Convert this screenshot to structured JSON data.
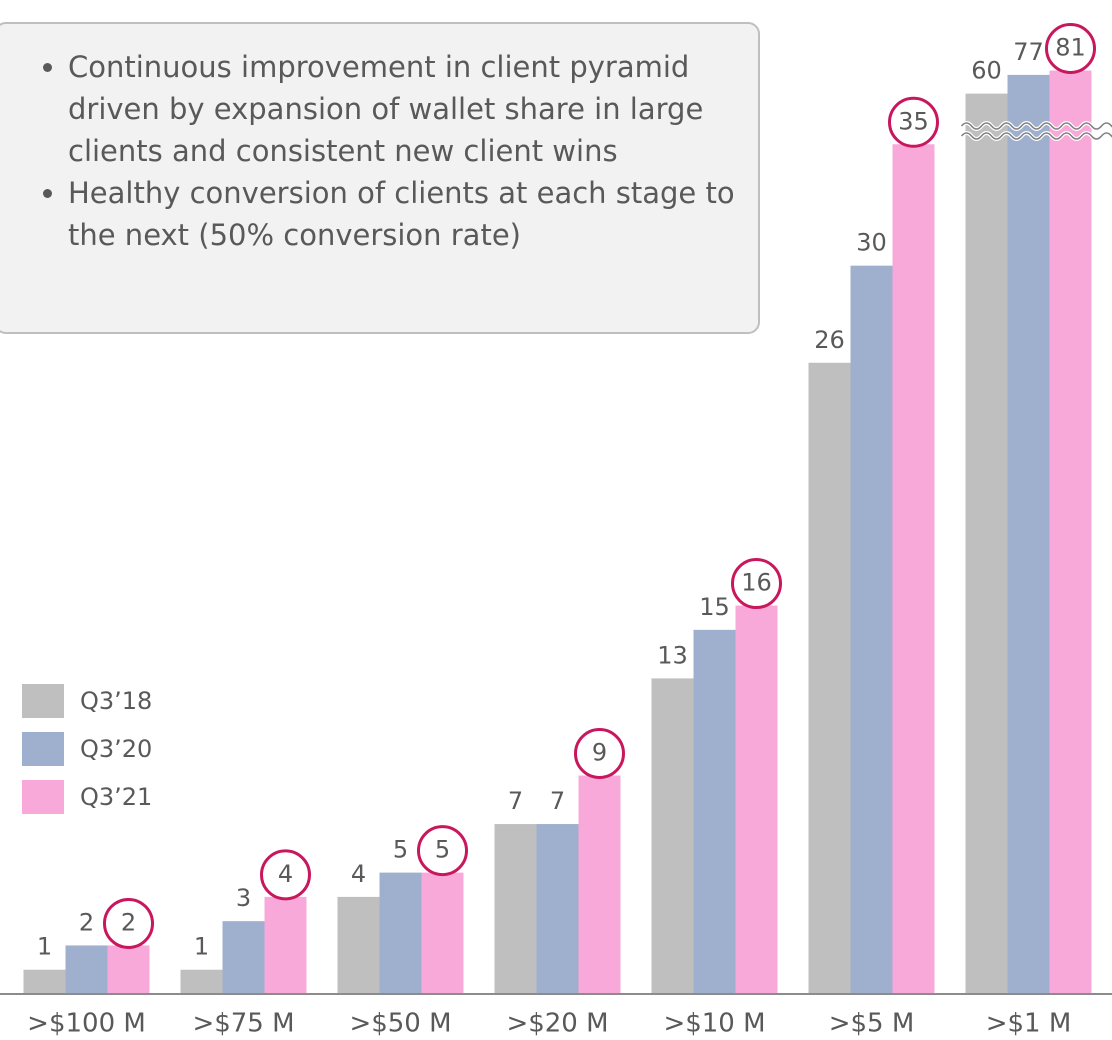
{
  "chart_data": {
    "type": "bar",
    "categories": [
      ">$100 M",
      ">$75 M",
      ">$50 M",
      ">$20 M",
      ">$10 M",
      ">$5 M",
      ">$1 M"
    ],
    "series": [
      {
        "name": "Q3’18",
        "color": "#bfbfbf",
        "values": [
          1,
          1,
          4,
          7,
          13,
          26,
          60
        ]
      },
      {
        "name": "Q3’20",
        "color": "#9eb0cd",
        "values": [
          2,
          3,
          5,
          7,
          15,
          30,
          77
        ]
      },
      {
        "name": "Q3’21",
        "color": "#f9a9d9",
        "values": [
          2,
          4,
          5,
          9,
          16,
          35,
          81
        ]
      }
    ],
    "ylim": [
      0,
      36
    ],
    "axis_break": true,
    "legend": "left",
    "notes": [
      "Continuous improvement in client pyramid driven by expansion of wallet share in large clients and consistent new client wins",
      "Healthy conversion of clients at each stage to the next (50% conversion rate)"
    ]
  }
}
